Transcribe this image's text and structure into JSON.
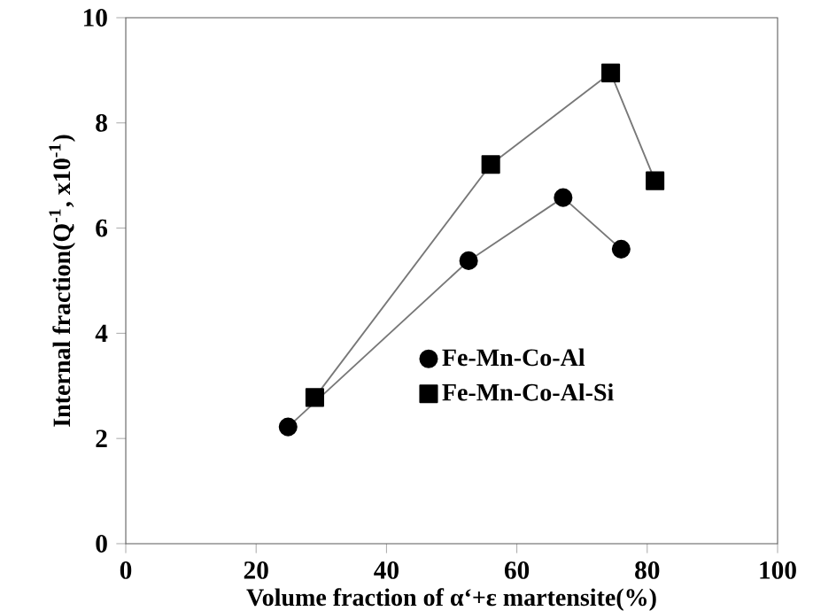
{
  "chart_data": {
    "type": "line",
    "xlabel": "Volume fraction of α‘+ε martensite(%)",
    "ylabel": "Internal fraction(Q$^{-1}$, x10$^{-1}$)",
    "xlim": [
      0,
      100
    ],
    "xticks": [
      0,
      20,
      40,
      60,
      80,
      100
    ],
    "ylim": [
      0,
      10
    ],
    "yticks": [
      0,
      2,
      4,
      6,
      8,
      10
    ],
    "grid": false,
    "legend": "bottom right",
    "series": [
      {
        "name": "Fe-Mn-Co-Al",
        "color": "#000000",
        "marker": "circle",
        "x": [
          24.9,
          52.6,
          67.1,
          76.0
        ],
        "values": [
          2.22,
          5.38,
          6.58,
          5.6
        ]
      },
      {
        "name": "Fe-Mn-Co-Al-Si",
        "color": "#000000",
        "marker": "square",
        "x": [
          29.0,
          56.0,
          74.4,
          81.2
        ],
        "values": [
          2.78,
          7.21,
          8.95,
          6.9
        ]
      }
    ]
  }
}
